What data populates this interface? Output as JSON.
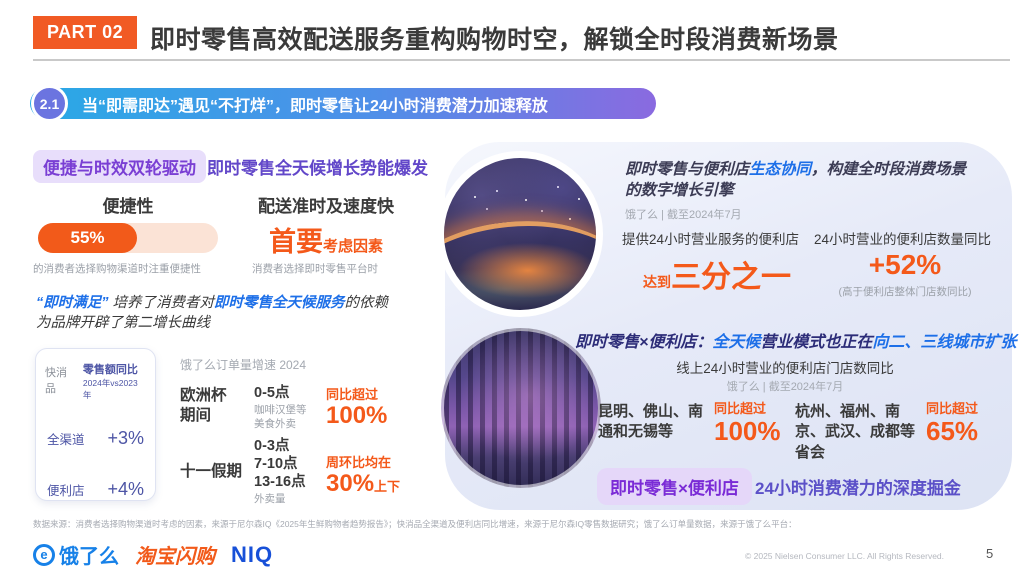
{
  "header": {
    "part_badge": "PART 02",
    "title": "即时零售高效配送服务重构购物时空，解锁全时段消费新场景"
  },
  "section": {
    "number": "2.1",
    "title": "当“即需即达”遇见“不打烊”，即时零售让24小时消费潜力加速释放"
  },
  "left": {
    "badge": "便捷与时效双轮驱动",
    "headline": "即时零售全天候增长势能爆发",
    "convenience": {
      "title": "便捷性",
      "percent": "55%",
      "caption": "的消费者选择购物渠道时注重便捷性"
    },
    "delivery": {
      "title": "配送准时及速度快",
      "big": "首要",
      "small": "考虑因素",
      "caption": "消费者选择即时零售平台时"
    },
    "quote": {
      "p1": "“即时满足”",
      "p2": " 培养了消费者对",
      "p3": "即时零售全天候服务",
      "p4": "的依赖",
      "line2": "为品牌开辟了第二增长曲线"
    },
    "table": {
      "category": "快消品",
      "header_line1": "零售额同比",
      "header_line2": "2024年vs2023年",
      "rows": [
        {
          "label": "全渠道",
          "value": "+3%"
        },
        {
          "label": "便利店",
          "value": "+4%"
        }
      ]
    }
  },
  "middle": {
    "caption": "饿了么订单量增速 2024",
    "rows": [
      {
        "period": "欧洲杯\n期间",
        "time": "0-5点",
        "detail": "咖啡汉堡等\n美食外卖",
        "stat_label": "同比超过",
        "stat_value": "100%",
        "stat_suffix": ""
      },
      {
        "period": "十一假期",
        "time": "0-3点\n7-10点\n13-16点",
        "detail": "外卖量",
        "stat_label": "周环比均在",
        "stat_value": "30%",
        "stat_suffix": "上下"
      }
    ]
  },
  "right": {
    "top": {
      "pre": "即时零售与便利店",
      "hl": "生态协同",
      "post": "，构建全时段消费场景的数字增长引擎",
      "source": "饿了么 | 截至2024年7月",
      "col1": {
        "label": "提供24小时营业服务的便利店",
        "prefix": "达到",
        "value": "三分之一"
      },
      "col2": {
        "label": "24小时营业的便利店数量同比",
        "value": "+52%",
        "note": "(高于便利店整体门店数同比)"
      }
    },
    "bottom": {
      "h1": "即时零售×便利店：",
      "h2": "全天候",
      "h3": "营业模式也正在",
      "h4": "向二、三线城市扩张",
      "subtitle": "线上24小时营业的便利店门店数同比",
      "source": "饿了么 | 截至2024年7月",
      "stats": [
        {
          "cities": "昆明、佛山、南通和无锡等",
          "label": "同比超过",
          "value": "100%"
        },
        {
          "cities": "杭州、福州、南京、武汉、成都等省会",
          "label": "同比超过",
          "value": "65%"
        }
      ],
      "tag": "即时零售×便利店",
      "tag_text": "24小时消费潜力的深度掘金"
    }
  },
  "footer": {
    "source": "数据来源：消费者选择购物渠道时考虑的因素，来源于尼尔森IQ《2025年生鲜购物者趋势报告》；快消品全渠道及便利店同比增速，来源于尼尔森IQ零售数据研究；饿了么订单量数据，来源于饿了么平台：",
    "logo_eleme_icon": "e",
    "logo_eleme": "饿了么",
    "logo_taobao": "淘宝闪购",
    "logo_niq": "NIQ",
    "copyright": "© 2025 Nielsen Consumer LLC. All Rights Reserved.",
    "page": "5"
  }
}
